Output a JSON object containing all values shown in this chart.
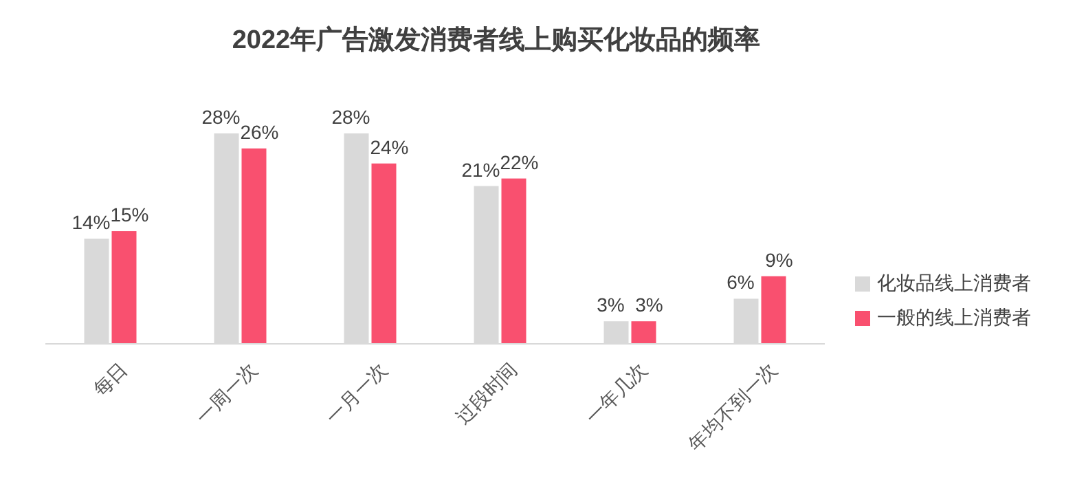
{
  "chart_data": {
    "type": "bar",
    "title": "2022年广告激发消费者线上购买化妆品的频率",
    "categories": [
      "每日",
      "一周一次",
      "一月一次",
      "过段时间",
      "一年几次",
      "年均不到一次"
    ],
    "series": [
      {
        "name": "化妆品线上消费者",
        "color": "#d9d9d9",
        "values": [
          14,
          28,
          28,
          21,
          3,
          6
        ],
        "value_labels": [
          "14%",
          "28%",
          "28%",
          "21%",
          "3%",
          "6%"
        ]
      },
      {
        "name": "一般的线上消费者",
        "color": "#f9506f",
        "values": [
          15,
          26,
          24,
          22,
          3,
          9
        ],
        "value_labels": [
          "15%",
          "26%",
          "24%",
          "22%",
          "3%",
          "9%"
        ]
      }
    ],
    "legend": "right"
  }
}
